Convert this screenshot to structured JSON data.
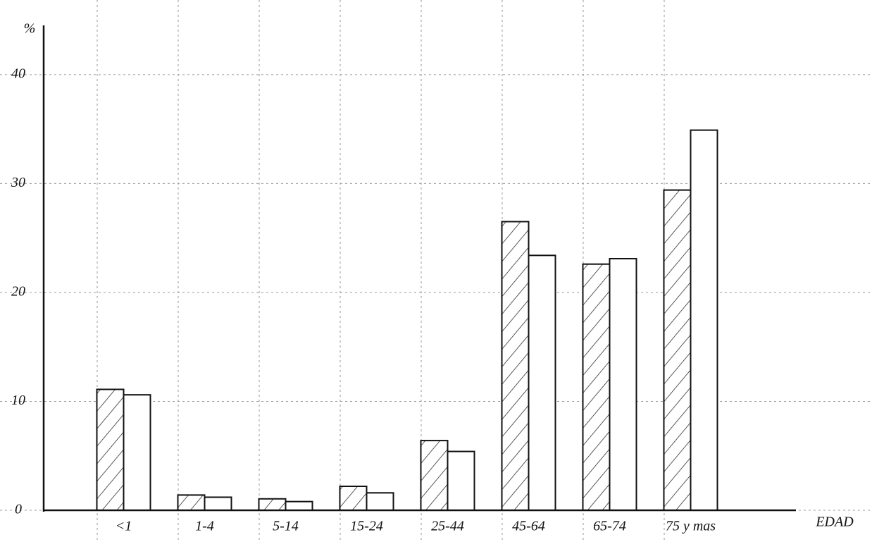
{
  "chart_data": {
    "type": "bar",
    "y_label": "%",
    "x_label": "EDAD",
    "categories": [
      "<1",
      "1-4",
      "5-14",
      "15-24",
      "25-44",
      "45-64",
      "65-74",
      "75 y mas"
    ],
    "series": [
      {
        "color": "#ffffff",
        "hatched": true,
        "values": [
          11.1,
          1.4,
          1.05,
          2.2,
          6.4,
          26.5,
          22.6,
          29.4
        ]
      },
      {
        "color": "#ffffff",
        "hatched": false,
        "values": [
          10.6,
          1.2,
          0.8,
          1.6,
          5.4,
          23.4,
          23.1,
          34.9
        ]
      }
    ],
    "ylim": [
      0,
      44
    ],
    "yticks": [
      0,
      10,
      20,
      30,
      40
    ],
    "grid": true
  }
}
